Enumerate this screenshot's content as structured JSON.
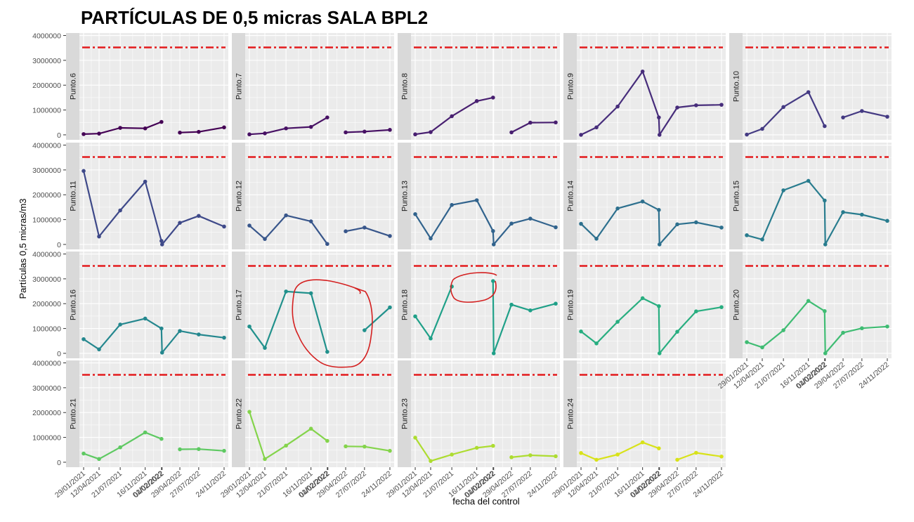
{
  "chart_data": {
    "type": "line",
    "title": "PARTÍCULAS DE 0,5 micras SALA BPL2",
    "xlabel": "fecha del control",
    "ylabel": "Partículas 0,5 micras/m3",
    "y_ticks": [
      "0",
      "1000000",
      "2000000",
      "3000000",
      "4000000"
    ],
    "ylim": [
      -200000,
      4100000
    ],
    "threshold": 3520000,
    "threshold_color": "#e31a1c",
    "dates": [
      "29/01/2021",
      "12/04/2021",
      "21/07/2021",
      "16/11/2021",
      "01/02/2022",
      "04/02/2022",
      "29/04/2022",
      "27/07/2022",
      "24/11/2022"
    ],
    "x_tick_labels": [
      "29/01/2021",
      "12/04/2021",
      "21/07/2021",
      "16/11/2021",
      "01/02/2022",
      "04/02/2022",
      "29/04/2022",
      "27/07/2022",
      "24/11/2022"
    ],
    "x_days": [
      0,
      73,
      173,
      291,
      368,
      371,
      455,
      544,
      664
    ],
    "x_range": [
      -20,
      684
    ],
    "panels": [
      {
        "label": "Punto.6",
        "color": "#440154",
        "values": [
          30000,
          50000,
          280000,
          260000,
          520000,
          null,
          90000,
          120000,
          300000
        ]
      },
      {
        "label": "Punto.7",
        "color": "#471164",
        "values": [
          20000,
          60000,
          260000,
          320000,
          700000,
          null,
          100000,
          130000,
          200000
        ]
      },
      {
        "label": "Punto.8",
        "color": "#481f70",
        "values": [
          20000,
          110000,
          750000,
          1360000,
          1500000,
          null,
          100000,
          490000,
          500000
        ]
      },
      {
        "label": "Punto.9",
        "color": "#472d7b",
        "values": [
          0,
          300000,
          1140000,
          2550000,
          700000,
          0,
          1100000,
          1190000,
          1210000
        ]
      },
      {
        "label": "Punto.10",
        "color": "#443a83",
        "values": [
          10000,
          240000,
          1120000,
          1720000,
          350000,
          null,
          700000,
          960000,
          730000
        ]
      },
      {
        "label": "Punto.11",
        "color": "#3e4989",
        "values": [
          2960000,
          320000,
          1370000,
          2530000,
          140000,
          0,
          870000,
          1150000,
          720000
        ]
      },
      {
        "label": "Punto.12",
        "color": "#38568b",
        "values": [
          760000,
          220000,
          1170000,
          930000,
          20000,
          null,
          530000,
          680000,
          340000
        ]
      },
      {
        "label": "Punto.13",
        "color": "#31638d",
        "values": [
          1220000,
          240000,
          1590000,
          1780000,
          540000,
          0,
          840000,
          1040000,
          690000
        ]
      },
      {
        "label": "Punto.14",
        "color": "#2d708e",
        "values": [
          830000,
          230000,
          1450000,
          1730000,
          1390000,
          0,
          810000,
          890000,
          680000
        ]
      },
      {
        "label": "Punto.15",
        "color": "#287c8e",
        "values": [
          370000,
          200000,
          2180000,
          2560000,
          1770000,
          0,
          1300000,
          1200000,
          950000
        ]
      },
      {
        "label": "Punto.16",
        "color": "#24878e",
        "values": [
          570000,
          160000,
          1160000,
          1400000,
          1000000,
          30000,
          900000,
          760000,
          630000
        ]
      },
      {
        "label": "Punto.17",
        "color": "#21918c",
        "values": [
          1080000,
          220000,
          2490000,
          2420000,
          60000,
          null,
          null,
          930000,
          1850000
        ]
      },
      {
        "label": "Punto.18",
        "color": "#1fa088",
        "values": [
          1490000,
          600000,
          2690000,
          null,
          2910000,
          0,
          1960000,
          1730000,
          2000000
        ]
      },
      {
        "label": "Punto.19",
        "color": "#28ae80",
        "values": [
          880000,
          400000,
          1270000,
          2220000,
          1900000,
          0,
          870000,
          1690000,
          1860000
        ]
      },
      {
        "label": "Punto.20",
        "color": "#3fbc73",
        "values": [
          450000,
          240000,
          930000,
          2110000,
          1700000,
          0,
          830000,
          1010000,
          1080000
        ]
      },
      {
        "label": "Punto.21",
        "color": "#5ec962",
        "values": [
          350000,
          130000,
          600000,
          1200000,
          940000,
          null,
          520000,
          530000,
          460000
        ]
      },
      {
        "label": "Punto.22",
        "color": "#84d44b",
        "values": [
          2030000,
          130000,
          670000,
          1350000,
          860000,
          null,
          640000,
          630000,
          460000
        ]
      },
      {
        "label": "Punto.23",
        "color": "#addc30",
        "values": [
          990000,
          50000,
          310000,
          580000,
          660000,
          null,
          200000,
          280000,
          240000
        ]
      },
      {
        "label": "Punto.24",
        "color": "#d8e219",
        "values": [
          370000,
          100000,
          310000,
          800000,
          560000,
          null,
          100000,
          380000,
          230000
        ]
      }
    ],
    "annotations": [
      "freehand red circle around Punto.17 missing values",
      "freehand red circle around Punto.18 missing value"
    ]
  }
}
